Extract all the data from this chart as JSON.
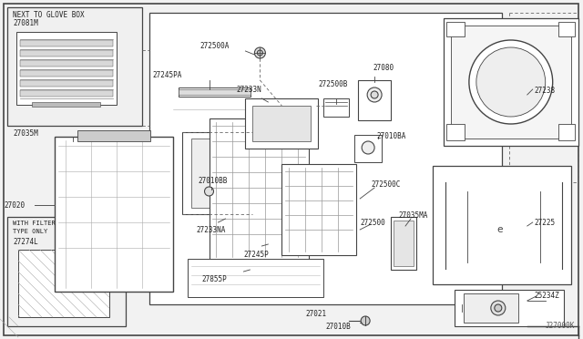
{
  "bg_color": "#f2f2f2",
  "line_color": "#444444",
  "footer": "J27000K",
  "label_fs": 5.8,
  "parts": {
    "27081M_note": "NEXT TO GLOVE BOX",
    "27081M": "27081M",
    "27035M": "27035M",
    "27020": "27020",
    "27245PA": "27245PA",
    "272500A": "272500A",
    "27233N": "27233N",
    "272500B": "272500B",
    "27080": "27080",
    "27010BB": "27010BB",
    "27233NA": "27233NA",
    "27245P": "27245P",
    "272500C": "272500C",
    "272500": "272500",
    "27010BA": "27010BA",
    "27855P": "27855P",
    "27021": "27021",
    "27035MA": "27035MA",
    "27238": "27238",
    "27225": "27225",
    "25234Z": "25234Z",
    "27010B": "27010B",
    "27274L": "27274L",
    "filter_note1": "WITH FILTER",
    "filter_note2": "TYPE ONLY"
  }
}
